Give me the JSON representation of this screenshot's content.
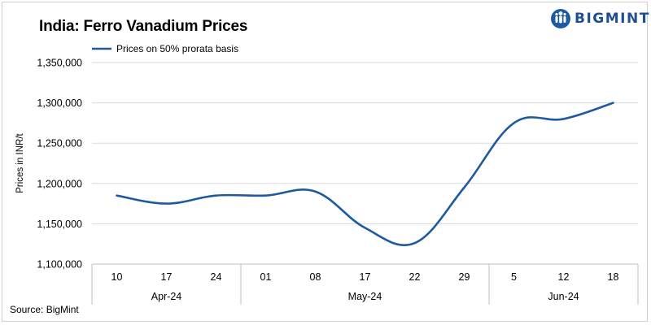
{
  "header": {
    "title": "India: Ferro Vanadium Prices",
    "brand": "BIGMINT"
  },
  "footer": {
    "source": "Source: BigMint"
  },
  "colors": {
    "series_line": "#1f5aa0",
    "gridline": "#d9d9d9",
    "axis": "#bfbfbf"
  },
  "chart_data": {
    "type": "line",
    "title": "India: Ferro Vanadium Prices",
    "ylabel": "Prices in INR/t",
    "xlabel": "",
    "ylim": [
      1100000,
      1350000
    ],
    "yticks": [
      1100000,
      1150000,
      1200000,
      1250000,
      1300000,
      1350000
    ],
    "ytick_labels": [
      "1,100,000",
      "1,150,000",
      "1,200,000",
      "1,250,000",
      "1,300,000",
      "1,350,000"
    ],
    "grid": true,
    "legend_position": "top-left",
    "categories": [
      "10",
      "17",
      "24",
      "01",
      "08",
      "17",
      "22",
      "29",
      "5",
      "12",
      "18"
    ],
    "category_groups": [
      {
        "label": "Apr-24",
        "count": 3
      },
      {
        "label": "May-24",
        "count": 5
      },
      {
        "label": "Jun-24",
        "count": 3
      }
    ],
    "series": [
      {
        "name": "Prices on 50% prorata basis",
        "values": [
          1185000,
          1175000,
          1185000,
          1185000,
          1190000,
          1145000,
          1126000,
          1195000,
          1275000,
          1280000,
          1300000
        ]
      }
    ]
  }
}
